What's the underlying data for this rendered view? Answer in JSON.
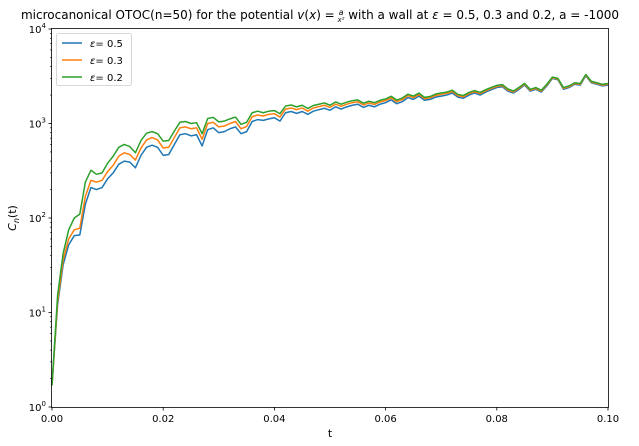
{
  "chart_data": {
    "type": "line",
    "title": "microcanonical OTOC(n=50) for the potential v(x) = a/x²  with a wall at ε = 0.5, 0.3 and 0.2, a = -1000",
    "title_parts": {
      "pre": "microcanonical OTOC(n=50) for the potential ",
      "v": "v",
      "x": "x",
      "a": "a",
      "den": "x²",
      "post": "  with a wall at ",
      "eps": "ε",
      "tail": " = 0.5, 0.3 and 0.2, a = -1000"
    },
    "xlabel": "t",
    "ylabel": "C_n(t)",
    "ylabel_parts": {
      "main": "C",
      "sub": "n",
      "rest": "(t)"
    },
    "yscale": "log",
    "xlim": [
      0.0,
      0.1
    ],
    "ylim": [
      1,
      10000
    ],
    "x_ticks": [
      "0.00",
      "0.02",
      "0.04",
      "0.06",
      "0.08",
      "0.10"
    ],
    "y_ticks": [
      {
        "base": "10",
        "exp": "0"
      },
      {
        "base": "10",
        "exp": "1"
      },
      {
        "base": "10",
        "exp": "2"
      },
      {
        "base": "10",
        "exp": "3"
      },
      {
        "base": "10",
        "exp": "4"
      }
    ],
    "legend_position": "top-left",
    "grid": false,
    "x": [
      0.0,
      0.001,
      0.002,
      0.003,
      0.004,
      0.005,
      0.006,
      0.007,
      0.008,
      0.009,
      0.01,
      0.011,
      0.012,
      0.013,
      0.014,
      0.015,
      0.016,
      0.017,
      0.018,
      0.019,
      0.02,
      0.021,
      0.022,
      0.023,
      0.024,
      0.025,
      0.026,
      0.027,
      0.028,
      0.029,
      0.03,
      0.031,
      0.032,
      0.033,
      0.034,
      0.035,
      0.036,
      0.037,
      0.038,
      0.039,
      0.04,
      0.041,
      0.042,
      0.043,
      0.044,
      0.045,
      0.046,
      0.047,
      0.048,
      0.049,
      0.05,
      0.051,
      0.052,
      0.053,
      0.054,
      0.055,
      0.056,
      0.057,
      0.058,
      0.059,
      0.06,
      0.061,
      0.062,
      0.063,
      0.064,
      0.065,
      0.066,
      0.067,
      0.068,
      0.069,
      0.07,
      0.071,
      0.072,
      0.073,
      0.074,
      0.075,
      0.076,
      0.077,
      0.078,
      0.079,
      0.08,
      0.081,
      0.082,
      0.083,
      0.084,
      0.085,
      0.086,
      0.087,
      0.088,
      0.089,
      0.09,
      0.091,
      0.092,
      0.093,
      0.094,
      0.095,
      0.096,
      0.097,
      0.098,
      0.099,
      0.1
    ],
    "series": [
      {
        "label_parts": {
          "eps": "ε",
          "rest": "= 0.5"
        },
        "color": "#1f77b4",
        "values": [
          1.7,
          12,
          32,
          52,
          65,
          66,
          140,
          210,
          200,
          210,
          260,
          300,
          370,
          400,
          390,
          340,
          460,
          560,
          590,
          560,
          460,
          470,
          600,
          760,
          780,
          740,
          760,
          580,
          860,
          900,
          800,
          820,
          880,
          920,
          780,
          820,
          1050,
          1100,
          1080,
          1120,
          1150,
          1060,
          1300,
          1340,
          1280,
          1340,
          1250,
          1350,
          1400,
          1450,
          1380,
          1500,
          1420,
          1500,
          1560,
          1600,
          1480,
          1560,
          1500,
          1600,
          1660,
          1780,
          1620,
          1700,
          1880,
          1800,
          1950,
          1760,
          1800,
          1900,
          1950,
          2000,
          2100,
          1900,
          1850,
          2000,
          2100,
          2000,
          2150,
          2280,
          2400,
          2450,
          2200,
          2100,
          2300,
          2550,
          2200,
          2300,
          2150,
          2500,
          3000,
          2900,
          2300,
          2400,
          2600,
          2550,
          3200,
          2700,
          2600,
          2500,
          2550
        ]
      },
      {
        "label_parts": {
          "eps": "ε",
          "rest": "= 0.3"
        },
        "color": "#ff7f0e",
        "values": [
          1.7,
          13,
          36,
          60,
          75,
          78,
          170,
          250,
          240,
          250,
          310,
          360,
          450,
          490,
          470,
          410,
          550,
          670,
          710,
          670,
          550,
          560,
          710,
          900,
          920,
          880,
          900,
          680,
          1000,
          1030,
          920,
          940,
          1000,
          1050,
          880,
          930,
          1180,
          1230,
          1200,
          1250,
          1270,
          1170,
          1420,
          1460,
          1400,
          1460,
          1350,
          1460,
          1510,
          1560,
          1480,
          1600,
          1520,
          1600,
          1660,
          1700,
          1570,
          1650,
          1590,
          1690,
          1750,
          1870,
          1700,
          1790,
          1970,
          1880,
          2030,
          1830,
          1870,
          1980,
          2030,
          2080,
          2180,
          1970,
          1920,
          2070,
          2170,
          2070,
          2220,
          2350,
          2470,
          2520,
          2260,
          2160,
          2360,
          2610,
          2250,
          2350,
          2200,
          2560,
          3050,
          2950,
          2350,
          2450,
          2650,
          2600,
          3250,
          2750,
          2650,
          2550,
          2600
        ]
      },
      {
        "label_parts": {
          "eps": "ε",
          "rest": "= 0.2"
        },
        "color": "#2ca02c",
        "values": [
          1.7,
          15,
          42,
          75,
          100,
          110,
          240,
          320,
          290,
          300,
          380,
          450,
          560,
          600,
          570,
          490,
          660,
          790,
          820,
          780,
          650,
          660,
          830,
          1030,
          1050,
          1000,
          1020,
          780,
          1130,
          1160,
          1040,
          1060,
          1120,
          1170,
          980,
          1030,
          1300,
          1350,
          1300,
          1350,
          1370,
          1270,
          1530,
          1570,
          1500,
          1560,
          1440,
          1550,
          1600,
          1650,
          1560,
          1690,
          1600,
          1680,
          1740,
          1780,
          1640,
          1720,
          1660,
          1760,
          1820,
          1940,
          1770,
          1860,
          2040,
          1950,
          2100,
          1890,
          1930,
          2050,
          2100,
          2150,
          2250,
          2030,
          1980,
          2130,
          2230,
          2130,
          2280,
          2410,
          2530,
          2580,
          2320,
          2210,
          2410,
          2660,
          2300,
          2400,
          2250,
          2610,
          3100,
          3000,
          2400,
          2500,
          2700,
          2650,
          3300,
          2800,
          2700,
          2600,
          2650
        ]
      }
    ]
  }
}
